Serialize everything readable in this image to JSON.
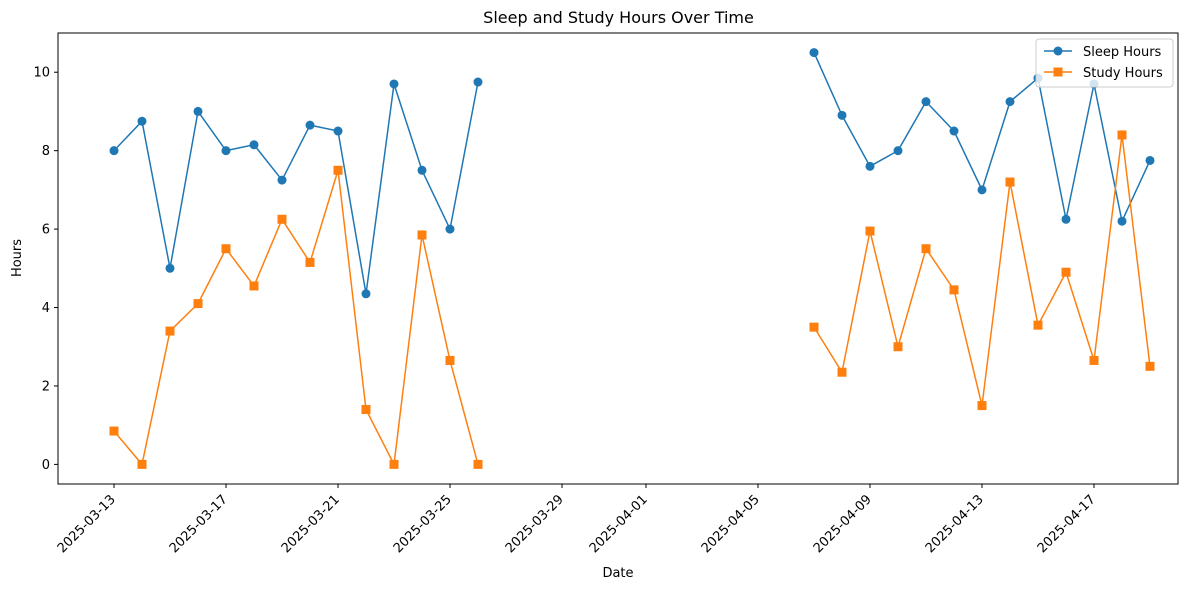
{
  "chart_data": {
    "type": "line",
    "title": "Sleep and Study Hours Over Time",
    "xlabel": "Date",
    "ylabel": "Hours",
    "x_type": "date",
    "xlim": [
      "2025-03-11",
      "2025-04-20"
    ],
    "ylim": [
      -0.5,
      11
    ],
    "x_ticks": [
      "2025-03-13",
      "2025-03-17",
      "2025-03-21",
      "2025-03-25",
      "2025-03-29",
      "2025-04-01",
      "2025-04-05",
      "2025-04-09",
      "2025-04-13",
      "2025-04-17"
    ],
    "y_ticks": [
      0,
      2,
      4,
      6,
      8,
      10
    ],
    "grid": false,
    "legend_position": "top-right",
    "series": [
      {
        "name": "Sleep Hours",
        "color": "#1f77b4",
        "marker": "circle",
        "segments": [
          {
            "x": [
              "2025-03-13",
              "2025-03-14",
              "2025-03-15",
              "2025-03-16",
              "2025-03-17",
              "2025-03-18",
              "2025-03-19",
              "2025-03-20",
              "2025-03-21",
              "2025-03-22",
              "2025-03-23",
              "2025-03-24",
              "2025-03-25",
              "2025-03-26"
            ],
            "y": [
              8.0,
              8.75,
              5.0,
              9.0,
              8.0,
              8.15,
              7.25,
              8.65,
              8.5,
              4.35,
              9.7,
              7.5,
              6.0,
              9.75
            ]
          },
          {
            "x": [
              "2025-04-07",
              "2025-04-08",
              "2025-04-09",
              "2025-04-10",
              "2025-04-11",
              "2025-04-12",
              "2025-04-13",
              "2025-04-14",
              "2025-04-15",
              "2025-04-16",
              "2025-04-17",
              "2025-04-18",
              "2025-04-19"
            ],
            "y": [
              10.5,
              8.9,
              7.6,
              8.0,
              9.25,
              8.5,
              7.0,
              9.25,
              9.85,
              6.25,
              9.7,
              6.2,
              7.75
            ]
          }
        ]
      },
      {
        "name": "Study Hours",
        "color": "#ff7f0e",
        "marker": "square",
        "segments": [
          {
            "x": [
              "2025-03-13",
              "2025-03-14",
              "2025-03-15",
              "2025-03-16",
              "2025-03-17",
              "2025-03-18",
              "2025-03-19",
              "2025-03-20",
              "2025-03-21",
              "2025-03-22",
              "2025-03-23",
              "2025-03-24",
              "2025-03-25",
              "2025-03-26"
            ],
            "y": [
              0.85,
              0.0,
              3.4,
              4.1,
              5.5,
              4.55,
              6.25,
              5.15,
              7.5,
              1.4,
              0.0,
              5.85,
              2.65,
              0.0
            ]
          },
          {
            "x": [
              "2025-04-07",
              "2025-04-08",
              "2025-04-09",
              "2025-04-10",
              "2025-04-11",
              "2025-04-12",
              "2025-04-13",
              "2025-04-14",
              "2025-04-15",
              "2025-04-16",
              "2025-04-17",
              "2025-04-18",
              "2025-04-19"
            ],
            "y": [
              3.5,
              2.35,
              5.95,
              3.0,
              5.5,
              4.45,
              1.5,
              7.2,
              3.55,
              4.9,
              2.65,
              8.4,
              2.5
            ]
          }
        ]
      }
    ]
  }
}
